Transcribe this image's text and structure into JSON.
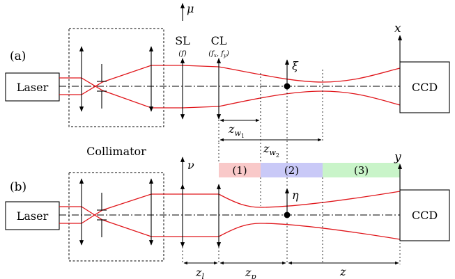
{
  "panels": {
    "a_label": "(a)",
    "b_label": "(b)"
  },
  "components": {
    "laser": "Laser",
    "ccd": "CCD",
    "collimator": "Collimator",
    "sl_label": "SL",
    "sl_focal": "(f)",
    "cl_label": "CL",
    "cl_focal": "(f",
    "cl_focal_x": "x",
    "cl_focal_sep": ", f",
    "cl_focal_y": "y",
    "cl_focal_close": ")"
  },
  "axes": {
    "mu": "μ",
    "nu": "ν",
    "xi": "ξ",
    "eta": "η",
    "x": "x",
    "y": "y"
  },
  "distances": {
    "z_w1_main": "z",
    "z_w1_sub": "w",
    "z_w1_subsub": "1",
    "z_w2_main": "z",
    "z_w2_sub": "w",
    "z_w2_subsub": "2",
    "z_l_main": "z",
    "z_l_sub": "l",
    "z_p_main": "z",
    "z_p_sub": "p",
    "z": "z"
  },
  "regions": [
    {
      "label": "(1)",
      "color": "#f9c9c9"
    },
    {
      "label": "(2)",
      "color": "#c9c9f7"
    },
    {
      "label": "(3)",
      "color": "#c9f4c9"
    }
  ],
  "colors": {
    "beam": "#e0161b"
  }
}
